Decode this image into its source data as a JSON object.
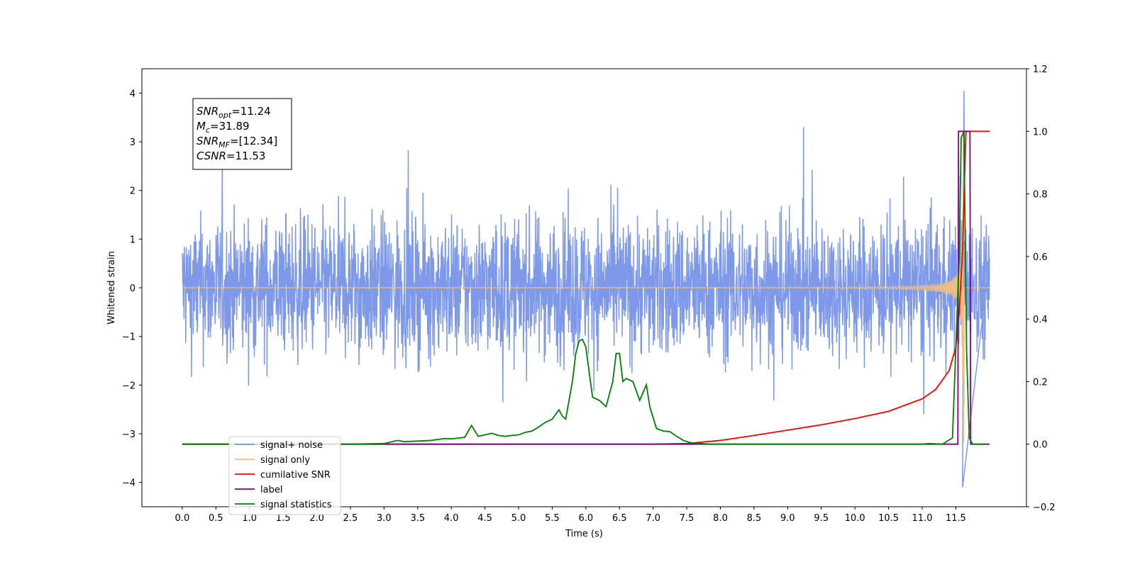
{
  "chart_data": {
    "type": "line",
    "xlabel": "Time (s)",
    "ylabel": "Whitened strain",
    "xlim": [
      -0.6,
      12.55
    ],
    "ylim": [
      -4.5,
      4.5
    ],
    "y2lim": [
      -0.2,
      1.2
    ],
    "x_ticks": [
      "0.0",
      "0.5",
      "1.0",
      "1.5",
      "2.0",
      "2.5",
      "3.0",
      "3.5",
      "4.0",
      "4.5",
      "5.0",
      "5.5",
      "6.0",
      "6.5",
      "7.0",
      "7.5",
      "8.0",
      "8.5",
      "9.0",
      "9.5",
      "10.0",
      "10.5",
      "11.0",
      "11.5"
    ],
    "y_ticks": [
      "−4",
      "−3",
      "−2",
      "−1",
      "0",
      "1",
      "2",
      "3",
      "4"
    ],
    "y2_ticks": [
      "−0.2",
      "0.0",
      "0.2",
      "0.4",
      "0.6",
      "0.8",
      "1.0",
      "1.2"
    ],
    "annotation": {
      "snr_opt": {
        "sym": "SNR",
        "sub": "opt",
        "val": "=11.24"
      },
      "mc": {
        "sym": "M",
        "sub": "c",
        "val": "=31.89"
      },
      "snr_mf": {
        "sym": "SNR",
        "sub": "MF",
        "val": "=[12.34]"
      },
      "csnr": {
        "sym": "CSNR",
        "sub": "",
        "val": "=11.53"
      }
    },
    "legend": {
      "placement": "lower-left",
      "entries": [
        {
          "label": "signal+ noise",
          "color": "#7793e8"
        },
        {
          "label": "signal only",
          "color": "#f5c07a"
        },
        {
          "label": "cumilative SNR",
          "color": "#ff0000"
        },
        {
          "label": "label",
          "color": "#800080"
        },
        {
          "label": "signal statistics",
          "color": "#008000"
        }
      ]
    },
    "series": [
      {
        "name": "signal+ noise",
        "axis": "left",
        "note_values": "dense noise, approx. range -2 to 2 with spikes to ±3.3, peak 4.05 at t=11.62, min -4.1 at t=11.6",
        "amplitude": 1.0,
        "t_start": 0.0,
        "t_end": 12.0
      },
      {
        "name": "signal only",
        "axis": "left",
        "description": "chirp growing from 0 near t=7.5 to amplitude ~3.2 at t≈11.6, then flat 0",
        "merger_time": 11.62
      },
      {
        "name": "cumilative SNR",
        "axis": "right",
        "x": [
          0.0,
          7.0,
          7.5,
          8.0,
          8.5,
          9.0,
          9.5,
          10.0,
          10.5,
          11.0,
          11.2,
          11.4,
          11.5,
          11.55,
          11.6,
          11.65,
          11.7,
          12.0
        ],
        "y": [
          0.0,
          0.0,
          0.002,
          0.012,
          0.028,
          0.045,
          0.062,
          0.082,
          0.105,
          0.145,
          0.175,
          0.235,
          0.31,
          0.42,
          0.62,
          1.0,
          1.0,
          1.0
        ]
      },
      {
        "name": "label",
        "axis": "right",
        "x": [
          0.0,
          11.53,
          11.54,
          11.71,
          11.72,
          12.0
        ],
        "y": [
          0.0,
          0.0,
          1.0,
          1.0,
          0.0,
          0.0
        ]
      },
      {
        "name": "signal statistics",
        "axis": "right",
        "x": [
          0.0,
          2.5,
          3.0,
          3.2,
          3.3,
          3.5,
          3.7,
          3.9,
          4.0,
          4.2,
          4.3,
          4.4,
          4.5,
          4.6,
          4.7,
          4.8,
          4.9,
          5.0,
          5.1,
          5.2,
          5.3,
          5.4,
          5.5,
          5.6,
          5.65,
          5.7,
          5.8,
          5.85,
          5.9,
          5.95,
          6.0,
          6.1,
          6.2,
          6.3,
          6.4,
          6.45,
          6.5,
          6.55,
          6.6,
          6.7,
          6.8,
          6.9,
          6.95,
          7.05,
          7.15,
          7.25,
          7.35,
          7.45,
          7.55,
          7.7,
          7.85,
          8.0,
          11.0,
          11.1,
          11.3,
          11.45,
          11.55,
          11.58,
          11.62,
          11.66,
          11.7,
          11.75,
          11.9,
          11.95
        ],
        "y": [
          0.0,
          0.0,
          0.002,
          0.012,
          0.008,
          0.01,
          0.012,
          0.018,
          0.017,
          0.022,
          0.06,
          0.025,
          0.03,
          0.035,
          0.028,
          0.025,
          0.028,
          0.03,
          0.038,
          0.042,
          0.055,
          0.07,
          0.08,
          0.11,
          0.09,
          0.08,
          0.2,
          0.29,
          0.33,
          0.335,
          0.31,
          0.15,
          0.14,
          0.12,
          0.2,
          0.29,
          0.29,
          0.2,
          0.21,
          0.2,
          0.14,
          0.19,
          0.12,
          0.05,
          0.042,
          0.04,
          0.025,
          0.012,
          0.005,
          0.002,
          0.0,
          0.0,
          0.0,
          0.002,
          0.0,
          0.02,
          0.6,
          0.98,
          1.0,
          0.3,
          0.02,
          0.0,
          0.0,
          0.0
        ]
      }
    ]
  }
}
